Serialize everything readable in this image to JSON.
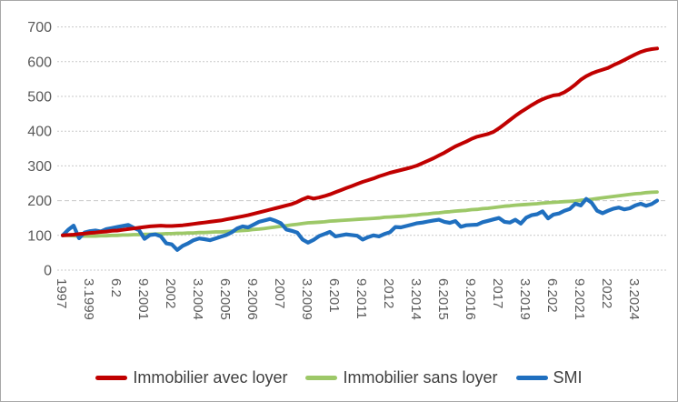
{
  "chart_data": {
    "type": "line",
    "title": "",
    "xlabel": "",
    "ylabel": "",
    "ylim": [
      0,
      700
    ],
    "y_ticks": [
      0,
      100,
      200,
      300,
      400,
      500,
      600,
      700
    ],
    "grid": "horizontal-dotted",
    "legend_position": "bottom",
    "axis_text_color": "#595959",
    "gridline_color": "#c9c9c9",
    "x_tick_interval": 5,
    "n_points": 110,
    "x_tick_labels": [
      "1997",
      "3.1999",
      "6.2",
      "9.2001",
      "2002",
      "3.2004",
      "6.2005",
      "9.2006",
      "2007",
      "3.2009",
      "6.201",
      "9.2011",
      "2012",
      "3.2014",
      "6.2015",
      "9.2016",
      "2017",
      "3.2019",
      "6.202",
      "9.2021",
      "2022",
      "3.2024"
    ],
    "series": [
      {
        "name": "Immobilier avec loyer",
        "color": "#C00000",
        "values": [
          100,
          101,
          102,
          104,
          105,
          107,
          108,
          110,
          111,
          113,
          114,
          116,
          118,
          120,
          122,
          124,
          126,
          127,
          128,
          127,
          127,
          128,
          129,
          131,
          133,
          135,
          137,
          139,
          141,
          143,
          146,
          149,
          152,
          155,
          158,
          162,
          166,
          170,
          174,
          178,
          182,
          186,
          190,
          196,
          204,
          210,
          206,
          209,
          213,
          218,
          224,
          230,
          236,
          242,
          248,
          254,
          259,
          264,
          270,
          275,
          280,
          284,
          288,
          292,
          296,
          301,
          308,
          315,
          322,
          330,
          338,
          347,
          356,
          363,
          370,
          378,
          384,
          388,
          392,
          398,
          408,
          420,
          432,
          444,
          455,
          465,
          475,
          484,
          492,
          498,
          503,
          505,
          512,
          522,
          534,
          548,
          558,
          566,
          572,
          577,
          582,
          590,
          597,
          605,
          613,
          621,
          628,
          633,
          636,
          638
        ]
      },
      {
        "name": "Immobilier sans loyer",
        "color": "#9DC868",
        "values": [
          100,
          100,
          99,
          98,
          98,
          98,
          98,
          99,
          99,
          100,
          100,
          101,
          101,
          102,
          102,
          103,
          103,
          104,
          104,
          105,
          105,
          106,
          106,
          107,
          107,
          108,
          108,
          109,
          110,
          110,
          111,
          112,
          113,
          114,
          115,
          117,
          118,
          120,
          122,
          124,
          126,
          128,
          130,
          132,
          134,
          136,
          137,
          138,
          139,
          141,
          142,
          143,
          144,
          145,
          146,
          147,
          148,
          149,
          150,
          152,
          153,
          154,
          155,
          156,
          158,
          159,
          161,
          162,
          164,
          165,
          167,
          168,
          170,
          171,
          172,
          174,
          175,
          177,
          178,
          180,
          182,
          184,
          185,
          187,
          188,
          189,
          190,
          191,
          193,
          194,
          195,
          196,
          197,
          198,
          199,
          201,
          202,
          204,
          206,
          208,
          210,
          212,
          214,
          216,
          218,
          220,
          221,
          223,
          224,
          225
        ]
      },
      {
        "name": "SMI",
        "color": "#1F6FBF",
        "values": [
          100,
          116,
          128,
          92,
          108,
          112,
          114,
          111,
          118,
          121,
          124,
          127,
          130,
          122,
          115,
          90,
          101,
          103,
          97,
          77,
          74,
          58,
          70,
          77,
          86,
          91,
          89,
          86,
          91,
          96,
          101,
          109,
          120,
          126,
          123,
          131,
          139,
          143,
          147,
          142,
          135,
          117,
          113,
          108,
          88,
          79,
          87,
          98,
          104,
          110,
          97,
          100,
          103,
          101,
          99,
          88,
          95,
          100,
          97,
          104,
          109,
          124,
          123,
          127,
          131,
          135,
          137,
          140,
          143,
          145,
          139,
          136,
          141,
          125,
          129,
          130,
          131,
          138,
          142,
          146,
          150,
          139,
          137,
          145,
          134,
          151,
          158,
          161,
          169,
          149,
          160,
          163,
          171,
          176,
          191,
          186,
          205,
          194,
          171,
          164,
          171,
          177,
          180,
          175,
          178,
          186,
          191,
          185,
          190,
          200
        ]
      }
    ]
  }
}
